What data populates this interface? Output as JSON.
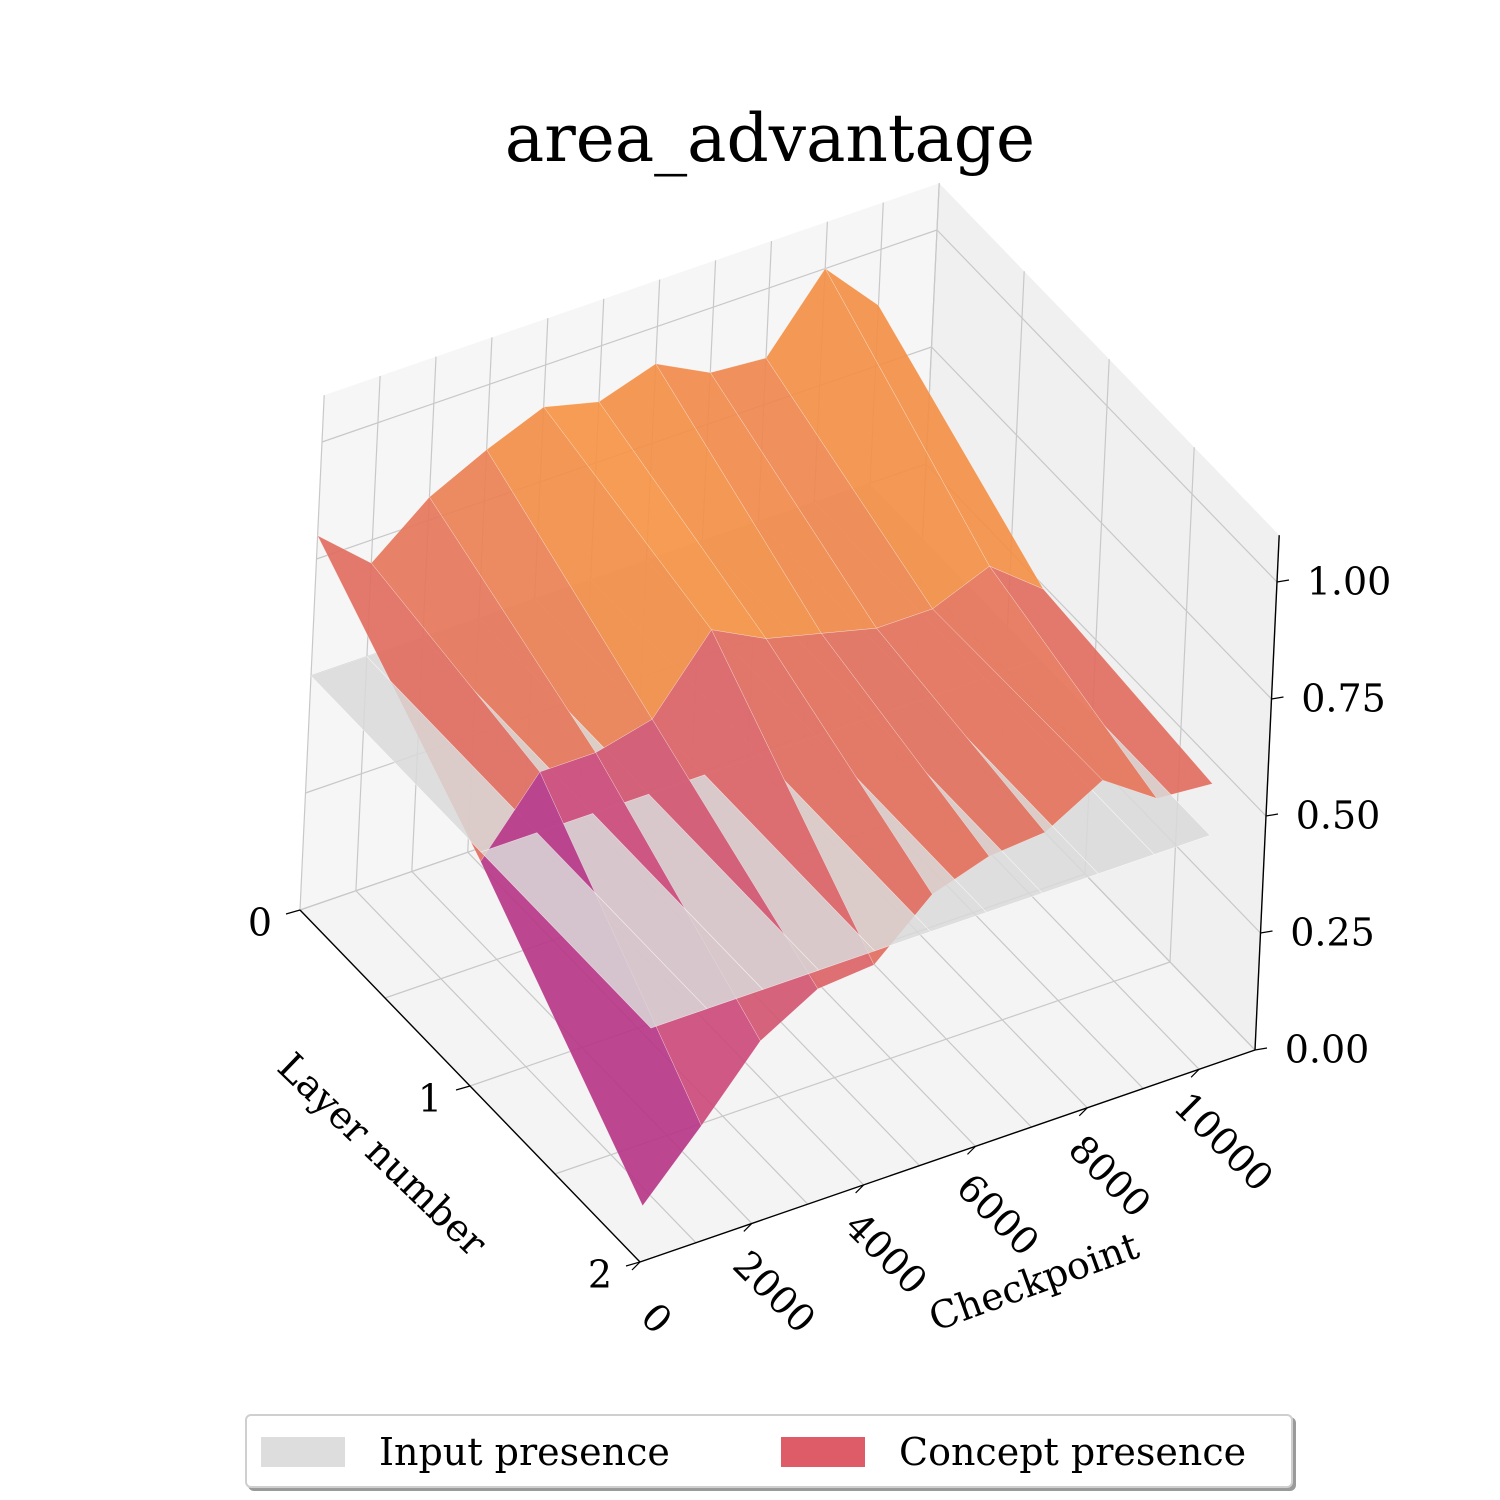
{
  "chart_data": {
    "type": "surface3d",
    "title": "area_advantage",
    "xlabel": "Checkpoint",
    "ylabel": "Layer number",
    "zlabel": "",
    "x_ticks": [
      "0",
      "2000",
      "4000",
      "6000",
      "8000",
      "10000"
    ],
    "y_ticks": [
      "0",
      "1",
      "2"
    ],
    "z_ticks": [
      "0.00",
      "0.25",
      "0.50",
      "0.75",
      "1.00"
    ],
    "xlim": [
      0,
      11000
    ],
    "ylim": [
      0,
      2
    ],
    "zlim": [
      0,
      1
    ],
    "checkpoints": [
      0,
      1000,
      2000,
      3000,
      4000,
      5000,
      6000,
      7000,
      8000,
      9000,
      10000
    ],
    "layers": [
      0,
      1,
      2
    ],
    "series": [
      {
        "name": "Input presence",
        "color": "#d9d9d9",
        "values": [
          [
            0.5,
            0.5,
            0.5,
            0.5,
            0.5,
            0.5,
            0.5,
            0.5,
            0.5,
            0.5,
            0.5
          ],
          [
            0.5,
            0.5,
            0.5,
            0.5,
            0.5,
            0.5,
            0.5,
            0.5,
            0.5,
            0.5,
            0.5
          ],
          [
            0.5,
            0.5,
            0.5,
            0.5,
            0.5,
            0.5,
            0.5,
            0.5,
            0.5,
            0.5,
            0.5
          ]
        ]
      },
      {
        "name": "Concept presence",
        "color": "#dd5c68",
        "colormap": "plasma",
        "values": [
          [
            0.8,
            0.7,
            0.8,
            0.86,
            0.91,
            0.88,
            0.92,
            0.86,
            0.85,
            1.0,
            0.88
          ],
          [
            0.48,
            0.63,
            0.63,
            0.66,
            0.81,
            0.75,
            0.72,
            0.69,
            0.69,
            0.74,
            0.65
          ],
          [
            0.12,
            0.25,
            0.39,
            0.46,
            0.47,
            0.58,
            0.62,
            0.63,
            0.7,
            0.62,
            0.61
          ]
        ]
      }
    ],
    "legend_position": "bottom-center",
    "grid": true
  }
}
